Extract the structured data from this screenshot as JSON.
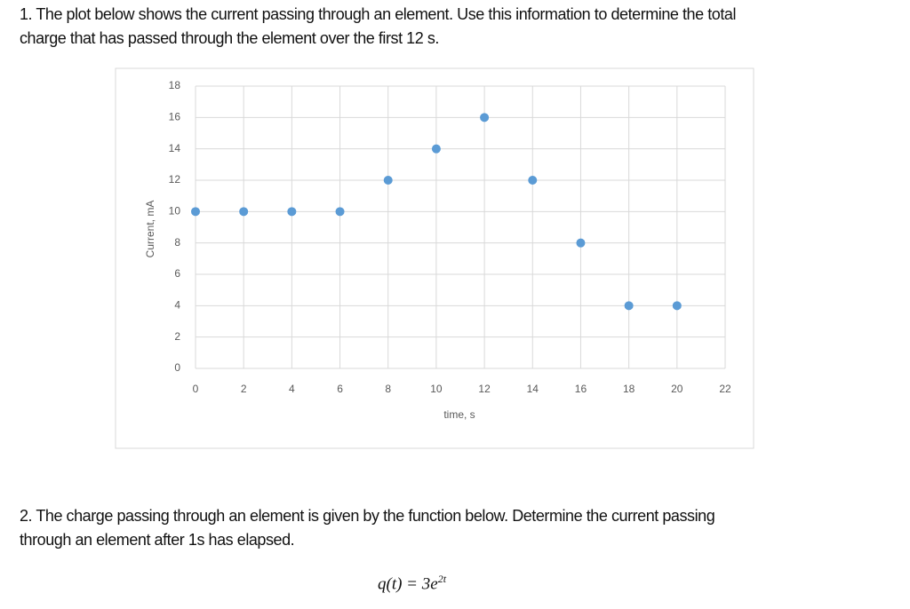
{
  "question_1": {
    "lines": [
      "1. The plot below shows the current passing through an element. Use this information to determine the total",
      "charge that has passed through the element over the first 12 s."
    ]
  },
  "chart_data": {
    "type": "scatter",
    "x_label": "time, s",
    "y_label": "Current, mA",
    "x": [
      0,
      2,
      4,
      6,
      8,
      10,
      12,
      14,
      16,
      18,
      20
    ],
    "values": [
      10,
      10,
      10,
      10,
      12,
      14,
      16,
      12,
      8,
      4,
      4
    ],
    "color": "#5b9bd5",
    "xlim": [
      0,
      22
    ],
    "xticks": [
      0,
      2,
      4,
      6,
      8,
      10,
      12,
      14,
      16,
      18,
      20,
      22
    ],
    "ylim": [
      0,
      18
    ],
    "yticks": [
      0,
      2,
      4,
      6,
      8,
      10,
      12,
      14,
      16,
      18
    ],
    "grid": true
  },
  "question_2": {
    "lines": [
      "2. The charge passing through an element is given by the function below. Determine the current passing",
      "through an element after 1s has elapsed."
    ],
    "formula": {
      "base": "q(t) = 3e",
      "exponent": "2t"
    }
  }
}
